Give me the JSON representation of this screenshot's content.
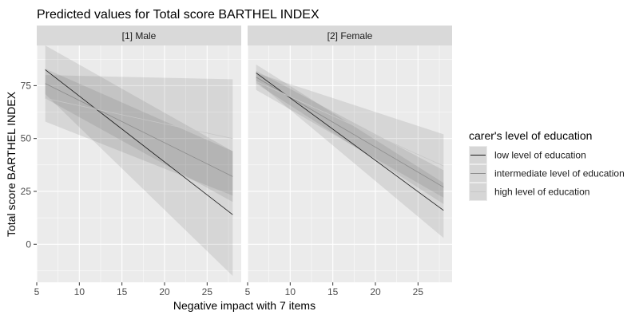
{
  "chart_data": {
    "type": "line",
    "title": "Predicted values for Total score BARTHEL INDEX",
    "xlabel": "Negative impact with 7 items",
    "ylabel": "Total score BARTHEL INDEX",
    "xlim": [
      5,
      29
    ],
    "ylim": [
      -18,
      94
    ],
    "x_ticks": [
      5,
      10,
      15,
      20,
      25
    ],
    "y_ticks": [
      0,
      25,
      50,
      75
    ],
    "legend": {
      "title": "carer's level of education",
      "position": "right",
      "entries": [
        "low level of education",
        "intermediate level of education",
        "high level of education"
      ]
    },
    "panels": [
      {
        "label": "[1] Male",
        "series": [
          {
            "name": "low level of education",
            "x": [
              6,
              28
            ],
            "y": [
              82.5,
              14
            ],
            "ci_low": [
              71,
              -15
            ],
            "ci_high": [
              94,
              44
            ]
          },
          {
            "name": "intermediate level of education",
            "x": [
              6,
              28
            ],
            "y": [
              76,
              32
            ],
            "ci_low": [
              69,
              20
            ],
            "ci_high": [
              83,
              44
            ]
          },
          {
            "name": "high level of education",
            "x": [
              6,
              28
            ],
            "y": [
              69,
              50
            ],
            "ci_low": [
              58,
              23
            ],
            "ci_high": [
              80,
              78
            ]
          }
        ]
      },
      {
        "label": "[2] Female",
        "series": [
          {
            "name": "low level of education",
            "x": [
              6,
              28
            ],
            "y": [
              81,
              16
            ],
            "ci_low": [
              77,
              3
            ],
            "ci_high": [
              85,
              29
            ]
          },
          {
            "name": "intermediate level of education",
            "x": [
              6,
              28
            ],
            "y": [
              79,
              27
            ],
            "ci_low": [
              76,
              19
            ],
            "ci_high": [
              82,
              35
            ]
          },
          {
            "name": "high level of education",
            "x": [
              6,
              28
            ],
            "y": [
              77,
              37
            ],
            "ci_low": [
              73,
              22
            ],
            "ci_high": [
              81,
              52
            ]
          }
        ]
      }
    ],
    "colors": {
      "panel_bg": "#ebebeb",
      "grid": "#ffffff",
      "strip_bg": "#d9d9d9",
      "ribbon": "#4d4d4d",
      "series": [
        "#1a1a1a",
        "#8c8c8c",
        "#c8c8c8"
      ]
    }
  }
}
